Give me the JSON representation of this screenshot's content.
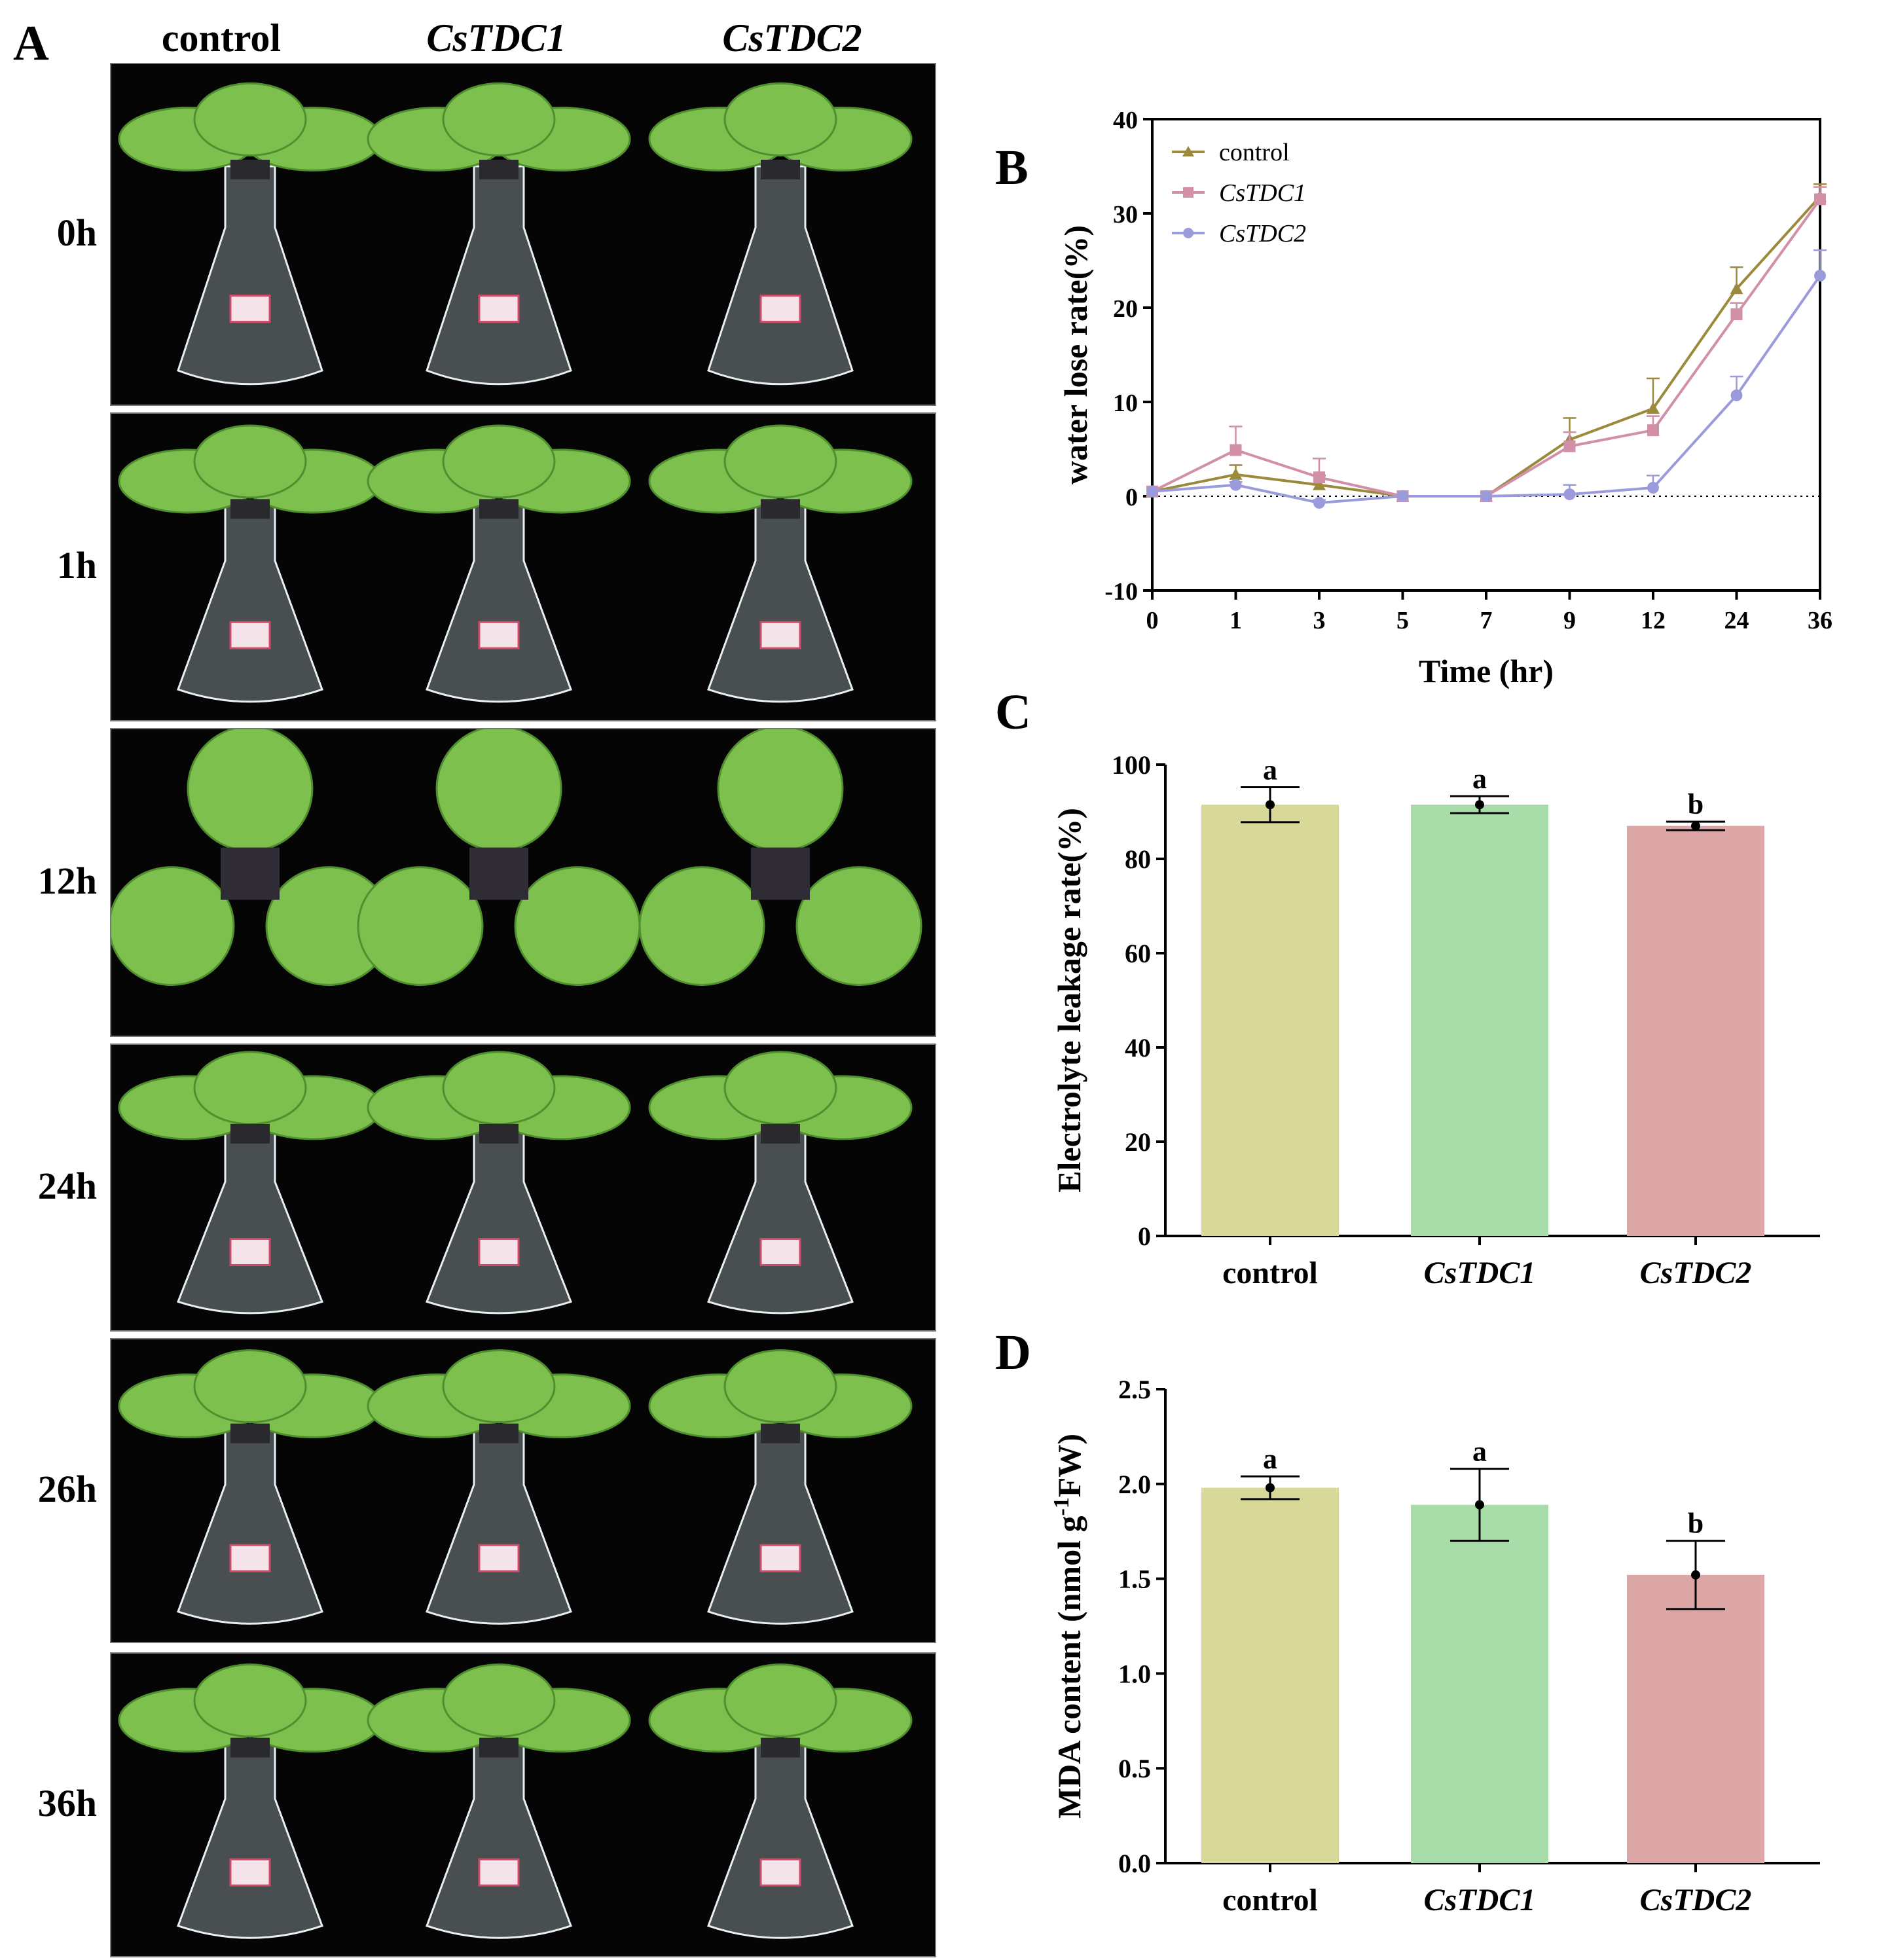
{
  "panels": {
    "a": "A",
    "b": "B",
    "c": "C",
    "d": "D"
  },
  "photo_panel": {
    "columns": [
      {
        "label": "control",
        "italic": false
      },
      {
        "label": "CsTDC1",
        "italic": true
      },
      {
        "label": "CsTDC2",
        "italic": true
      }
    ],
    "rows": [
      "0h",
      "1h",
      "12h",
      "24h",
      "26h",
      "36h"
    ],
    "colors": {
      "leaf": "#7dc04e",
      "leaf_dark": "#4f8f2e",
      "background": "#050505",
      "glass": "#c9d6de"
    }
  },
  "chart_data": [
    {
      "type": "line",
      "panel": "B",
      "xlabel": "Time (hr)",
      "ylabel": "water lose rate(%)",
      "x": [
        "0",
        "1",
        "3",
        "5",
        "7",
        "9",
        "12",
        "24",
        "36"
      ],
      "ylim": [
        -10,
        40
      ],
      "yticks": [
        -10,
        0,
        10,
        20,
        30,
        40
      ],
      "legend_position": "top-left",
      "zero_line": "dotted",
      "series": [
        {
          "name": "control",
          "italic": false,
          "marker": "triangle",
          "color": "#9b8a3c",
          "values": [
            0.5,
            2.3,
            1.2,
            0,
            0,
            6.0,
            9.3,
            22.0,
            31.8
          ],
          "errors": [
            0,
            1.0,
            1.0,
            0.2,
            0.2,
            2.3,
            3.2,
            2.3,
            1.3
          ]
        },
        {
          "name": "CsTDC1",
          "italic": true,
          "marker": "square",
          "color": "#d28fa8",
          "values": [
            0.5,
            4.9,
            2.0,
            0,
            0,
            5.3,
            7.0,
            19.3,
            31.5
          ],
          "errors": [
            0,
            2.5,
            2.0,
            0.2,
            0.2,
            1.5,
            1.5,
            1.2,
            1.3
          ]
        },
        {
          "name": "CsTDC2",
          "italic": true,
          "marker": "circle",
          "color": "#9b9bdc",
          "values": [
            0.5,
            1.2,
            -0.7,
            0,
            0,
            0.2,
            0.9,
            10.7,
            23.4
          ],
          "errors": [
            0,
            0.3,
            0.3,
            0.2,
            0.2,
            1.0,
            1.3,
            2.0,
            2.7
          ]
        }
      ]
    },
    {
      "type": "bar",
      "panel": "C",
      "ylabel": "Electrolyte leakage rate(%)",
      "categories": [
        "control",
        "CsTDC1",
        "CsTDC2"
      ],
      "category_italic": [
        false,
        true,
        true
      ],
      "values": [
        91.5,
        91.5,
        87.0
      ],
      "errors": [
        3.7,
        1.8,
        0.9
      ],
      "points": [
        91.5,
        91.5,
        87.0
      ],
      "significance": [
        "a",
        "a",
        "b"
      ],
      "ylim": [
        0,
        100
      ],
      "yticks": [
        0,
        20,
        40,
        60,
        80,
        100
      ],
      "colors": [
        "#d8d898",
        "#a8dca8",
        "#dca6a6"
      ]
    },
    {
      "type": "bar",
      "panel": "D",
      "ylabel_parts": [
        "MDA content (nmol g",
        "-1",
        "FW)"
      ],
      "categories": [
        "control",
        "CsTDC1",
        "CsTDC2"
      ],
      "category_italic": [
        false,
        true,
        true
      ],
      "values": [
        1.98,
        1.89,
        1.52
      ],
      "errors": [
        0.06,
        0.19,
        0.18
      ],
      "points": [
        1.98,
        1.89,
        1.52
      ],
      "significance": [
        "a",
        "a",
        "b"
      ],
      "ylim": [
        0,
        2.5
      ],
      "yticks": [
        "0.0",
        "0.5",
        "1.0",
        "1.5",
        "2.0",
        "2.5"
      ],
      "colors": [
        "#d8d898",
        "#a8dca8",
        "#dca6a6"
      ]
    }
  ]
}
